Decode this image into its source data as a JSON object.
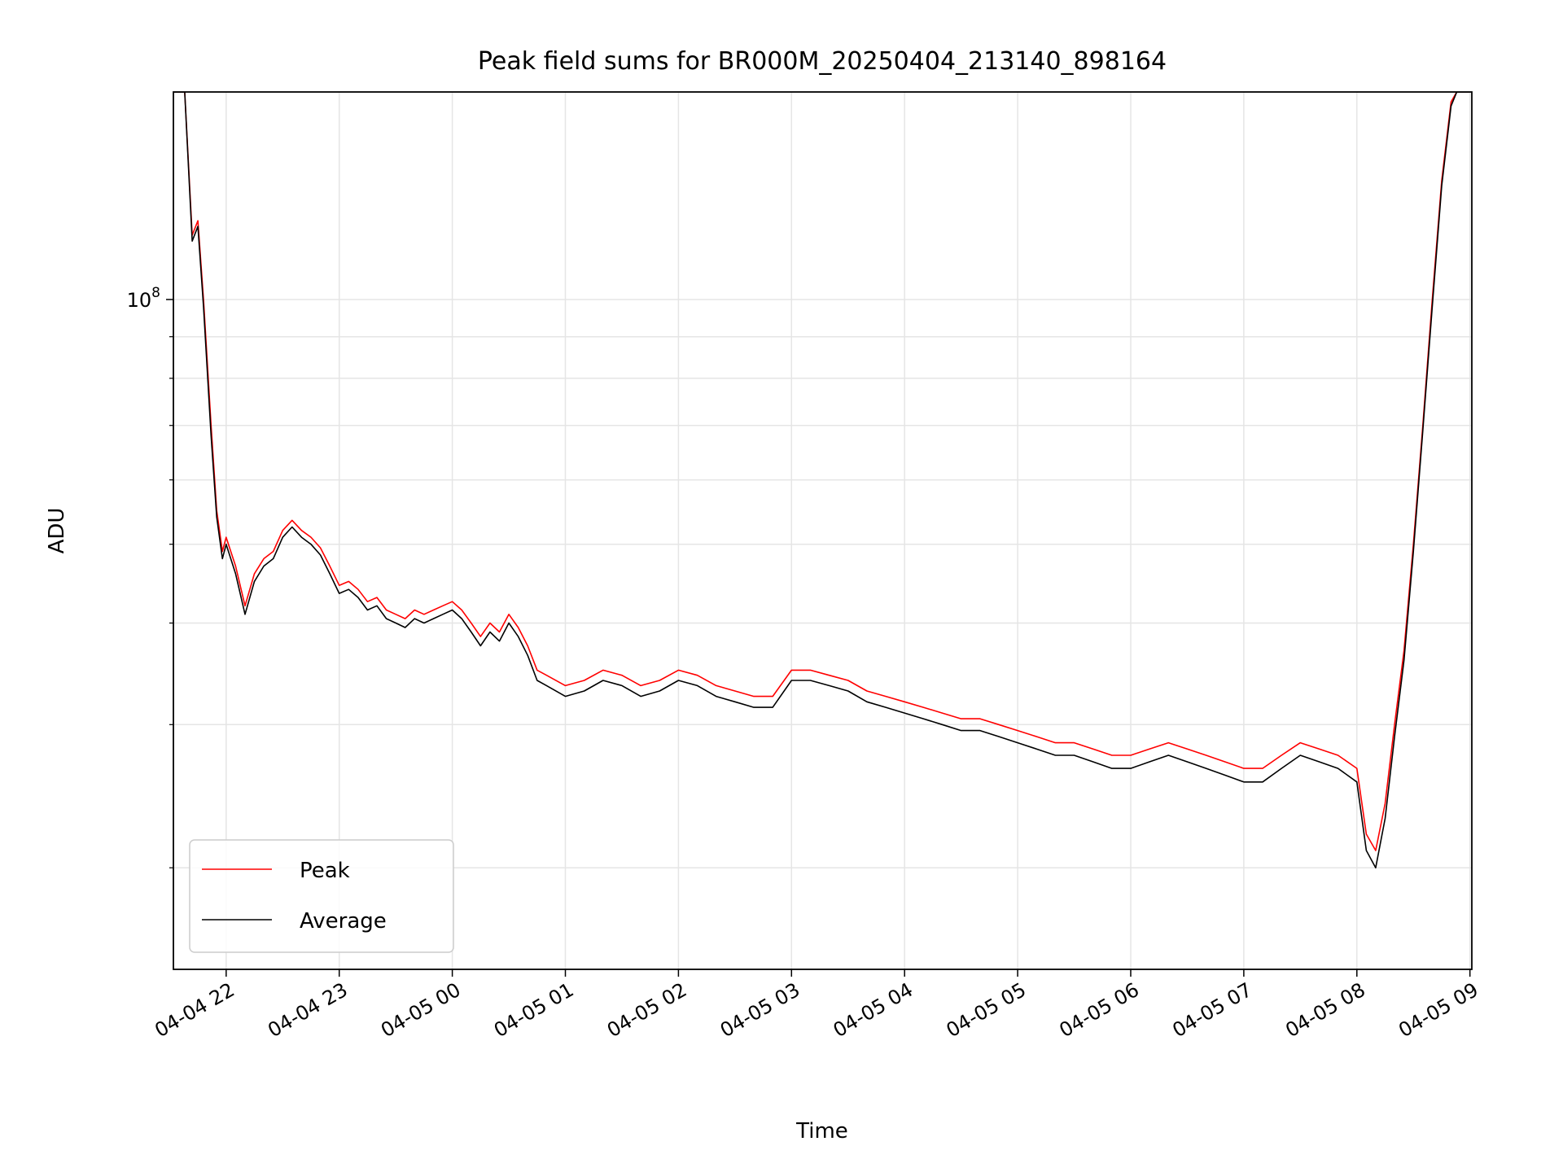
{
  "chart_data": {
    "type": "line",
    "title": "Peak field sums for BR000M_20250404_213140_898164",
    "xlabel": "Time",
    "ylabel": "ADU",
    "y_scale": "log",
    "xlim": [
      "2025-04-04 21:32",
      "2025-04-05 09:01"
    ],
    "ylim": [
      15000000,
      180000000
    ],
    "x_tick_labels": [
      "04-04 22",
      "04-04 23",
      "04-05 00",
      "04-05 01",
      "04-05 02",
      "04-05 03",
      "04-05 04",
      "04-05 05",
      "04-05 06",
      "04-05 07",
      "04-05 08",
      "04-05 09"
    ],
    "x_tick_times": [
      "2025-04-04 22:00",
      "2025-04-04 23:00",
      "2025-04-05 00:00",
      "2025-04-05 01:00",
      "2025-04-05 02:00",
      "2025-04-05 03:00",
      "2025-04-05 04:00",
      "2025-04-05 05:00",
      "2025-04-05 06:00",
      "2025-04-05 07:00",
      "2025-04-05 08:00",
      "2025-04-05 09:00"
    ],
    "y_tick_major": [
      {
        "base": "10",
        "exp": "8",
        "value": 100000000
      }
    ],
    "y_tick_minor": [
      20000000,
      30000000,
      40000000,
      50000000,
      60000000,
      70000000,
      80000000,
      90000000,
      200000000
    ],
    "grid": true,
    "legend_position": "bottom-left",
    "series": [
      {
        "name": "Peak",
        "color": "#ff0000",
        "points": [
          [
            "2025-04-04 21:32",
            180000000
          ],
          [
            "2025-04-04 21:38",
            180000000
          ],
          [
            "2025-04-04 21:42",
            120000000
          ],
          [
            "2025-04-04 21:45",
            125000000
          ],
          [
            "2025-04-04 21:48",
            100000000
          ],
          [
            "2025-04-04 21:52",
            70000000
          ],
          [
            "2025-04-04 21:55",
            55000000
          ],
          [
            "2025-04-04 21:58",
            49000000
          ],
          [
            "2025-04-04 22:00",
            51000000
          ],
          [
            "2025-04-04 22:05",
            47000000
          ],
          [
            "2025-04-04 22:10",
            42000000
          ],
          [
            "2025-04-04 22:15",
            46000000
          ],
          [
            "2025-04-04 22:20",
            48000000
          ],
          [
            "2025-04-04 22:25",
            49000000
          ],
          [
            "2025-04-04 22:30",
            52000000
          ],
          [
            "2025-04-04 22:35",
            53500000
          ],
          [
            "2025-04-04 22:40",
            52000000
          ],
          [
            "2025-04-04 22:45",
            51000000
          ],
          [
            "2025-04-04 22:50",
            49500000
          ],
          [
            "2025-04-04 22:55",
            47000000
          ],
          [
            "2025-04-04 23:00",
            44500000
          ],
          [
            "2025-04-04 23:05",
            45000000
          ],
          [
            "2025-04-04 23:10",
            44000000
          ],
          [
            "2025-04-04 23:15",
            42500000
          ],
          [
            "2025-04-04 23:20",
            43000000
          ],
          [
            "2025-04-04 23:25",
            41500000
          ],
          [
            "2025-04-04 23:30",
            41000000
          ],
          [
            "2025-04-04 23:35",
            40500000
          ],
          [
            "2025-04-04 23:40",
            41500000
          ],
          [
            "2025-04-04 23:45",
            41000000
          ],
          [
            "2025-04-04 23:50",
            41500000
          ],
          [
            "2025-04-04 23:55",
            42000000
          ],
          [
            "2025-04-05 00:00",
            42500000
          ],
          [
            "2025-04-05 00:05",
            41500000
          ],
          [
            "2025-04-05 00:10",
            40000000
          ],
          [
            "2025-04-05 00:15",
            38500000
          ],
          [
            "2025-04-05 00:20",
            40000000
          ],
          [
            "2025-04-05 00:25",
            39000000
          ],
          [
            "2025-04-05 00:30",
            41000000
          ],
          [
            "2025-04-05 00:35",
            39500000
          ],
          [
            "2025-04-05 00:40",
            37500000
          ],
          [
            "2025-04-05 00:45",
            35000000
          ],
          [
            "2025-04-05 00:50",
            34500000
          ],
          [
            "2025-04-05 01:00",
            33500000
          ],
          [
            "2025-04-05 01:10",
            34000000
          ],
          [
            "2025-04-05 01:20",
            35000000
          ],
          [
            "2025-04-05 01:30",
            34500000
          ],
          [
            "2025-04-05 01:40",
            33500000
          ],
          [
            "2025-04-05 01:50",
            34000000
          ],
          [
            "2025-04-05 02:00",
            35000000
          ],
          [
            "2025-04-05 02:10",
            34500000
          ],
          [
            "2025-04-05 02:20",
            33500000
          ],
          [
            "2025-04-05 02:30",
            33000000
          ],
          [
            "2025-04-05 02:40",
            32500000
          ],
          [
            "2025-04-05 02:50",
            32500000
          ],
          [
            "2025-04-05 03:00",
            35000000
          ],
          [
            "2025-04-05 03:10",
            35000000
          ],
          [
            "2025-04-05 03:20",
            34500000
          ],
          [
            "2025-04-05 03:30",
            34000000
          ],
          [
            "2025-04-05 03:40",
            33000000
          ],
          [
            "2025-04-05 03:50",
            32500000
          ],
          [
            "2025-04-05 04:00",
            32000000
          ],
          [
            "2025-04-05 04:10",
            31500000
          ],
          [
            "2025-04-05 04:20",
            31000000
          ],
          [
            "2025-04-05 04:30",
            30500000
          ],
          [
            "2025-04-05 04:40",
            30500000
          ],
          [
            "2025-04-05 04:50",
            30000000
          ],
          [
            "2025-04-05 05:00",
            29500000
          ],
          [
            "2025-04-05 05:10",
            29000000
          ],
          [
            "2025-04-05 05:20",
            28500000
          ],
          [
            "2025-04-05 05:30",
            28500000
          ],
          [
            "2025-04-05 05:40",
            28000000
          ],
          [
            "2025-04-05 05:50",
            27500000
          ],
          [
            "2025-04-05 06:00",
            27500000
          ],
          [
            "2025-04-05 06:10",
            28000000
          ],
          [
            "2025-04-05 06:20",
            28500000
          ],
          [
            "2025-04-05 06:30",
            28000000
          ],
          [
            "2025-04-05 06:40",
            27500000
          ],
          [
            "2025-04-05 06:50",
            27000000
          ],
          [
            "2025-04-05 07:00",
            26500000
          ],
          [
            "2025-04-05 07:10",
            26500000
          ],
          [
            "2025-04-05 07:20",
            27500000
          ],
          [
            "2025-04-05 07:30",
            28500000
          ],
          [
            "2025-04-05 07:40",
            28000000
          ],
          [
            "2025-04-05 07:50",
            27500000
          ],
          [
            "2025-04-05 08:00",
            26500000
          ],
          [
            "2025-04-05 08:05",
            22000000
          ],
          [
            "2025-04-05 08:10",
            21000000
          ],
          [
            "2025-04-05 08:15",
            24000000
          ],
          [
            "2025-04-05 08:20",
            30000000
          ],
          [
            "2025-04-05 08:25",
            37000000
          ],
          [
            "2025-04-05 08:30",
            50000000
          ],
          [
            "2025-04-05 08:35",
            70000000
          ],
          [
            "2025-04-05 08:40",
            100000000
          ],
          [
            "2025-04-05 08:45",
            140000000
          ],
          [
            "2025-04-05 08:50",
            175000000
          ],
          [
            "2025-04-05 08:53",
            180000000
          ],
          [
            "2025-04-05 09:00",
            180000000
          ]
        ]
      },
      {
        "name": "Average",
        "color": "#000000",
        "points": [
          [
            "2025-04-04 21:32",
            180000000
          ],
          [
            "2025-04-04 21:38",
            180000000
          ],
          [
            "2025-04-04 21:42",
            118000000
          ],
          [
            "2025-04-04 21:45",
            123000000
          ],
          [
            "2025-04-04 21:48",
            98000000
          ],
          [
            "2025-04-04 21:52",
            68000000
          ],
          [
            "2025-04-04 21:55",
            54000000
          ],
          [
            "2025-04-04 21:58",
            48000000
          ],
          [
            "2025-04-04 22:00",
            50000000
          ],
          [
            "2025-04-04 22:05",
            46000000
          ],
          [
            "2025-04-04 22:10",
            41000000
          ],
          [
            "2025-04-04 22:15",
            45000000
          ],
          [
            "2025-04-04 22:20",
            47000000
          ],
          [
            "2025-04-04 22:25",
            48000000
          ],
          [
            "2025-04-04 22:30",
            51000000
          ],
          [
            "2025-04-04 22:35",
            52500000
          ],
          [
            "2025-04-04 22:40",
            51000000
          ],
          [
            "2025-04-04 22:45",
            50000000
          ],
          [
            "2025-04-04 22:50",
            48500000
          ],
          [
            "2025-04-04 22:55",
            46000000
          ],
          [
            "2025-04-04 23:00",
            43500000
          ],
          [
            "2025-04-04 23:05",
            44000000
          ],
          [
            "2025-04-04 23:10",
            43000000
          ],
          [
            "2025-04-04 23:15",
            41500000
          ],
          [
            "2025-04-04 23:20",
            42000000
          ],
          [
            "2025-04-04 23:25",
            40500000
          ],
          [
            "2025-04-04 23:30",
            40000000
          ],
          [
            "2025-04-04 23:35",
            39500000
          ],
          [
            "2025-04-04 23:40",
            40500000
          ],
          [
            "2025-04-04 23:45",
            40000000
          ],
          [
            "2025-04-04 23:50",
            40500000
          ],
          [
            "2025-04-04 23:55",
            41000000
          ],
          [
            "2025-04-05 00:00",
            41500000
          ],
          [
            "2025-04-05 00:05",
            40500000
          ],
          [
            "2025-04-05 00:10",
            39000000
          ],
          [
            "2025-04-05 00:15",
            37500000
          ],
          [
            "2025-04-05 00:20",
            39000000
          ],
          [
            "2025-04-05 00:25",
            38000000
          ],
          [
            "2025-04-05 00:30",
            40000000
          ],
          [
            "2025-04-05 00:35",
            38500000
          ],
          [
            "2025-04-05 00:40",
            36500000
          ],
          [
            "2025-04-05 00:45",
            34000000
          ],
          [
            "2025-04-05 00:50",
            33500000
          ],
          [
            "2025-04-05 01:00",
            32500000
          ],
          [
            "2025-04-05 01:10",
            33000000
          ],
          [
            "2025-04-05 01:20",
            34000000
          ],
          [
            "2025-04-05 01:30",
            33500000
          ],
          [
            "2025-04-05 01:40",
            32500000
          ],
          [
            "2025-04-05 01:50",
            33000000
          ],
          [
            "2025-04-05 02:00",
            34000000
          ],
          [
            "2025-04-05 02:10",
            33500000
          ],
          [
            "2025-04-05 02:20",
            32500000
          ],
          [
            "2025-04-05 02:30",
            32000000
          ],
          [
            "2025-04-05 02:40",
            31500000
          ],
          [
            "2025-04-05 02:50",
            31500000
          ],
          [
            "2025-04-05 03:00",
            34000000
          ],
          [
            "2025-04-05 03:10",
            34000000
          ],
          [
            "2025-04-05 03:20",
            33500000
          ],
          [
            "2025-04-05 03:30",
            33000000
          ],
          [
            "2025-04-05 03:40",
            32000000
          ],
          [
            "2025-04-05 03:50",
            31500000
          ],
          [
            "2025-04-05 04:00",
            31000000
          ],
          [
            "2025-04-05 04:10",
            30500000
          ],
          [
            "2025-04-05 04:20",
            30000000
          ],
          [
            "2025-04-05 04:30",
            29500000
          ],
          [
            "2025-04-05 04:40",
            29500000
          ],
          [
            "2025-04-05 04:50",
            29000000
          ],
          [
            "2025-04-05 05:00",
            28500000
          ],
          [
            "2025-04-05 05:10",
            28000000
          ],
          [
            "2025-04-05 05:20",
            27500000
          ],
          [
            "2025-04-05 05:30",
            27500000
          ],
          [
            "2025-04-05 05:40",
            27000000
          ],
          [
            "2025-04-05 05:50",
            26500000
          ],
          [
            "2025-04-05 06:00",
            26500000
          ],
          [
            "2025-04-05 06:10",
            27000000
          ],
          [
            "2025-04-05 06:20",
            27500000
          ],
          [
            "2025-04-05 06:30",
            27000000
          ],
          [
            "2025-04-05 06:40",
            26500000
          ],
          [
            "2025-04-05 06:50",
            26000000
          ],
          [
            "2025-04-05 07:00",
            25500000
          ],
          [
            "2025-04-05 07:10",
            25500000
          ],
          [
            "2025-04-05 07:20",
            26500000
          ],
          [
            "2025-04-05 07:30",
            27500000
          ],
          [
            "2025-04-05 07:40",
            27000000
          ],
          [
            "2025-04-05 07:50",
            26500000
          ],
          [
            "2025-04-05 08:00",
            25500000
          ],
          [
            "2025-04-05 08:05",
            21000000
          ],
          [
            "2025-04-05 08:10",
            20000000
          ],
          [
            "2025-04-05 08:15",
            23000000
          ],
          [
            "2025-04-05 08:20",
            29000000
          ],
          [
            "2025-04-05 08:25",
            36000000
          ],
          [
            "2025-04-05 08:30",
            49000000
          ],
          [
            "2025-04-05 08:35",
            69000000
          ],
          [
            "2025-04-05 08:40",
            98000000
          ],
          [
            "2025-04-05 08:45",
            138000000
          ],
          [
            "2025-04-05 08:50",
            173000000
          ],
          [
            "2025-04-05 08:53",
            180000000
          ],
          [
            "2025-04-05 09:00",
            180000000
          ]
        ]
      }
    ]
  }
}
